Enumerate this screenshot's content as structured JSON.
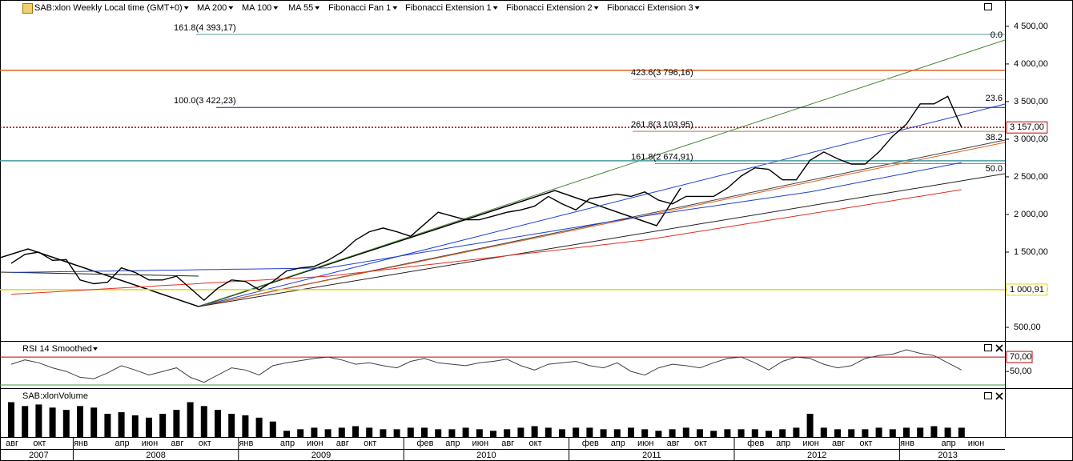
{
  "chart_data": {
    "type": "line",
    "header": [
      "SAB:xlon Weekly Local time (GMT+0)",
      "MA 200",
      "MA 100",
      "MA 55",
      "Fibonacci Fan 1",
      "Fibonacci Extension 1",
      "Fibonacci Extension 2",
      "Fibonacci Extension 3"
    ],
    "categories": [
      "авг",
      null,
      "окт",
      null,
      null,
      "янв",
      null,
      null,
      "апр",
      null,
      "июн",
      null,
      "авг",
      null,
      "окт",
      null,
      null,
      "янв",
      null,
      null,
      "апр",
      null,
      "июн",
      null,
      "авг",
      null,
      "окт",
      null,
      null,
      null,
      "фев",
      null,
      "апр",
      null,
      "июн",
      null,
      "авг",
      null,
      "окт",
      null,
      null,
      null,
      "фев",
      null,
      "апр",
      null,
      "июн",
      null,
      "авг",
      null,
      "окт",
      null,
      null,
      null,
      "фев",
      null,
      "апр",
      null,
      "июн",
      null,
      "авг",
      null,
      "окт",
      null,
      null,
      "янв",
      null,
      null,
      "апр",
      null,
      "июн",
      null
    ],
    "years": [
      "2007",
      "2008",
      "2009",
      "2010",
      "2011",
      "2012",
      "2013"
    ],
    "ylim": [
      330,
      4850
    ],
    "yticks": [
      {
        "value": 500,
        "label": "500,00"
      },
      {
        "value": 1000,
        "label": "1 000,00"
      },
      {
        "value": 1500,
        "label": "1 500,00"
      },
      {
        "value": 2000,
        "label": "2 000,00"
      },
      {
        "value": 2500,
        "label": "2 500,00"
      },
      {
        "value": 3000,
        "label": "3 000,00"
      },
      {
        "value": 3500,
        "label": "3 500,00"
      },
      {
        "value": 4000,
        "label": "4 000,00"
      },
      {
        "value": 4500,
        "label": "4 500,00"
      }
    ],
    "series": [
      {
        "name": "SAB:xlon",
        "color": "#000000",
        "values": [
          1350,
          1470,
          1500,
          1390,
          1400,
          1130,
          1080,
          1100,
          1290,
          1230,
          1130,
          1130,
          1180,
          1020,
          860,
          1020,
          1130,
          1110,
          1000,
          1110,
          1250,
          1290,
          1310,
          1390,
          1500,
          1660,
          1770,
          1820,
          1770,
          1710,
          1870,
          2030,
          1980,
          1930,
          1930,
          1980,
          2030,
          2060,
          2110,
          2240,
          2140,
          2060,
          2210,
          2240,
          2270,
          2240,
          2300,
          2190,
          2140,
          2240,
          2240,
          2240,
          2350,
          2510,
          2620,
          2600,
          2460,
          2460,
          2720,
          2830,
          2740,
          2670,
          2670,
          2830,
          3040,
          3200,
          3470,
          3470,
          3570,
          3157,
          null,
          null
        ]
      },
      {
        "name": "MA 200",
        "color": "#e03020",
        "values": [
          940,
          950,
          961,
          971,
          982,
          992,
          1003,
          1013,
          1023,
          1034,
          1044,
          1055,
          1065,
          1075,
          1086,
          1096,
          1107,
          1117,
          1127,
          1138,
          1148,
          1159,
          1169,
          1180,
          1201,
          1222,
          1243,
          1264,
          1285,
          1306,
          1326,
          1347,
          1368,
          1389,
          1410,
          1431,
          1452,
          1473,
          1494,
          1514,
          1535,
          1556,
          1577,
          1598,
          1619,
          1640,
          1660,
          1689,
          1718,
          1747,
          1776,
          1805,
          1834,
          1864,
          1893,
          1922,
          1951,
          1980,
          2009,
          2038,
          2067,
          2096,
          2125,
          2155,
          2184,
          2213,
          2242,
          2271,
          2300,
          2330,
          null,
          null
        ]
      },
      {
        "name": "MA 100",
        "color": "#2040d0",
        "values": [
          1230,
          1233,
          1235,
          1238,
          1240,
          1243,
          1246,
          1248,
          1251,
          1253,
          1256,
          1259,
          1261,
          1264,
          1267,
          1269,
          1272,
          1274,
          1277,
          1280,
          1282,
          1285,
          1287,
          1290,
          1320,
          1350,
          1380,
          1410,
          1440,
          1470,
          1500,
          1530,
          1560,
          1590,
          1620,
          1650,
          1680,
          1710,
          1740,
          1770,
          1800,
          1830,
          1860,
          1890,
          1920,
          1950,
          1980,
          2007,
          2033,
          2060,
          2087,
          2113,
          2140,
          2167,
          2193,
          2220,
          2247,
          2273,
          2300,
          2335,
          2371,
          2406,
          2442,
          2477,
          2513,
          2548,
          2584,
          2619,
          2655,
          2690,
          null,
          null
        ]
      }
    ],
    "fib_levels": [
      {
        "label": "161.8(4 393,17)",
        "value": 4393.17,
        "color": "#5a9a9a"
      },
      {
        "label": "100.0(3 422,23)",
        "value": 3422.23,
        "color": "#1a1a9a"
      },
      {
        "label": "423.6(3 796,16)",
        "value": 3796.16,
        "color": "#f0b8b8"
      },
      {
        "label": "261.8(3 103,95)",
        "value": 3103.95,
        "color": "#d07030"
      },
      {
        "label": "161.8(2 674,91)",
        "value": 2674.91,
        "color": "#5a9a9a"
      }
    ],
    "fan_labels": [
      {
        "label": "0.0",
        "value": 4383
      },
      {
        "label": "23.6",
        "value": 3543
      },
      {
        "label": "38.2",
        "value": 3021
      },
      {
        "label": "50.0",
        "value": 2606
      }
    ],
    "hlines": [
      {
        "value": 3915,
        "color": "#e06020"
      },
      {
        "value": 2713,
        "color": "#4a9aa0"
      },
      {
        "value": 3157,
        "label": "3 157,00",
        "color": "#c00000"
      },
      {
        "value": 1000.91,
        "label": "1 000,91",
        "color": "#e8d800"
      }
    ],
    "rsi": {
      "title": "RSI 14 Smoothed",
      "color": "#404040",
      "ylim": [
        28,
        90
      ],
      "yticks": [
        {
          "value": 70,
          "label": "70,00"
        },
        {
          "value": 50,
          "label": "50,00"
        }
      ],
      "values": [
        60,
        66,
        62,
        55,
        50,
        42,
        40,
        48,
        58,
        52,
        45,
        50,
        55,
        42,
        35,
        45,
        55,
        52,
        45,
        58,
        62,
        65,
        68,
        70,
        66,
        60,
        62,
        58,
        55,
        64,
        68,
        62,
        60,
        58,
        62,
        64,
        67,
        58,
        52,
        60,
        62,
        64,
        58,
        55,
        62,
        50,
        45,
        55,
        60,
        58,
        55,
        62,
        68,
        70,
        62,
        52,
        64,
        70,
        68,
        60,
        55,
        58,
        68,
        72,
        74,
        80,
        75,
        72,
        62,
        52,
        null,
        null
      ]
    },
    "volume": {
      "title": "SAB:xlonVolume",
      "color": "#000000",
      "ylim": [
        0,
        60
      ],
      "values": [
        45,
        40,
        42,
        38,
        35,
        40,
        38,
        30,
        32,
        28,
        25,
        30,
        35,
        45,
        40,
        35,
        30,
        28,
        25,
        20,
        8,
        10,
        12,
        10,
        12,
        14,
        12,
        10,
        10,
        12,
        12,
        10,
        10,
        12,
        10,
        8,
        10,
        12,
        14,
        12,
        10,
        12,
        12,
        10,
        10,
        12,
        10,
        8,
        10,
        12,
        10,
        8,
        10,
        10,
        10,
        8,
        10,
        12,
        30,
        12,
        10,
        10,
        10,
        12,
        10,
        12,
        12,
        14,
        12,
        12,
        null,
        null
      ]
    }
  }
}
